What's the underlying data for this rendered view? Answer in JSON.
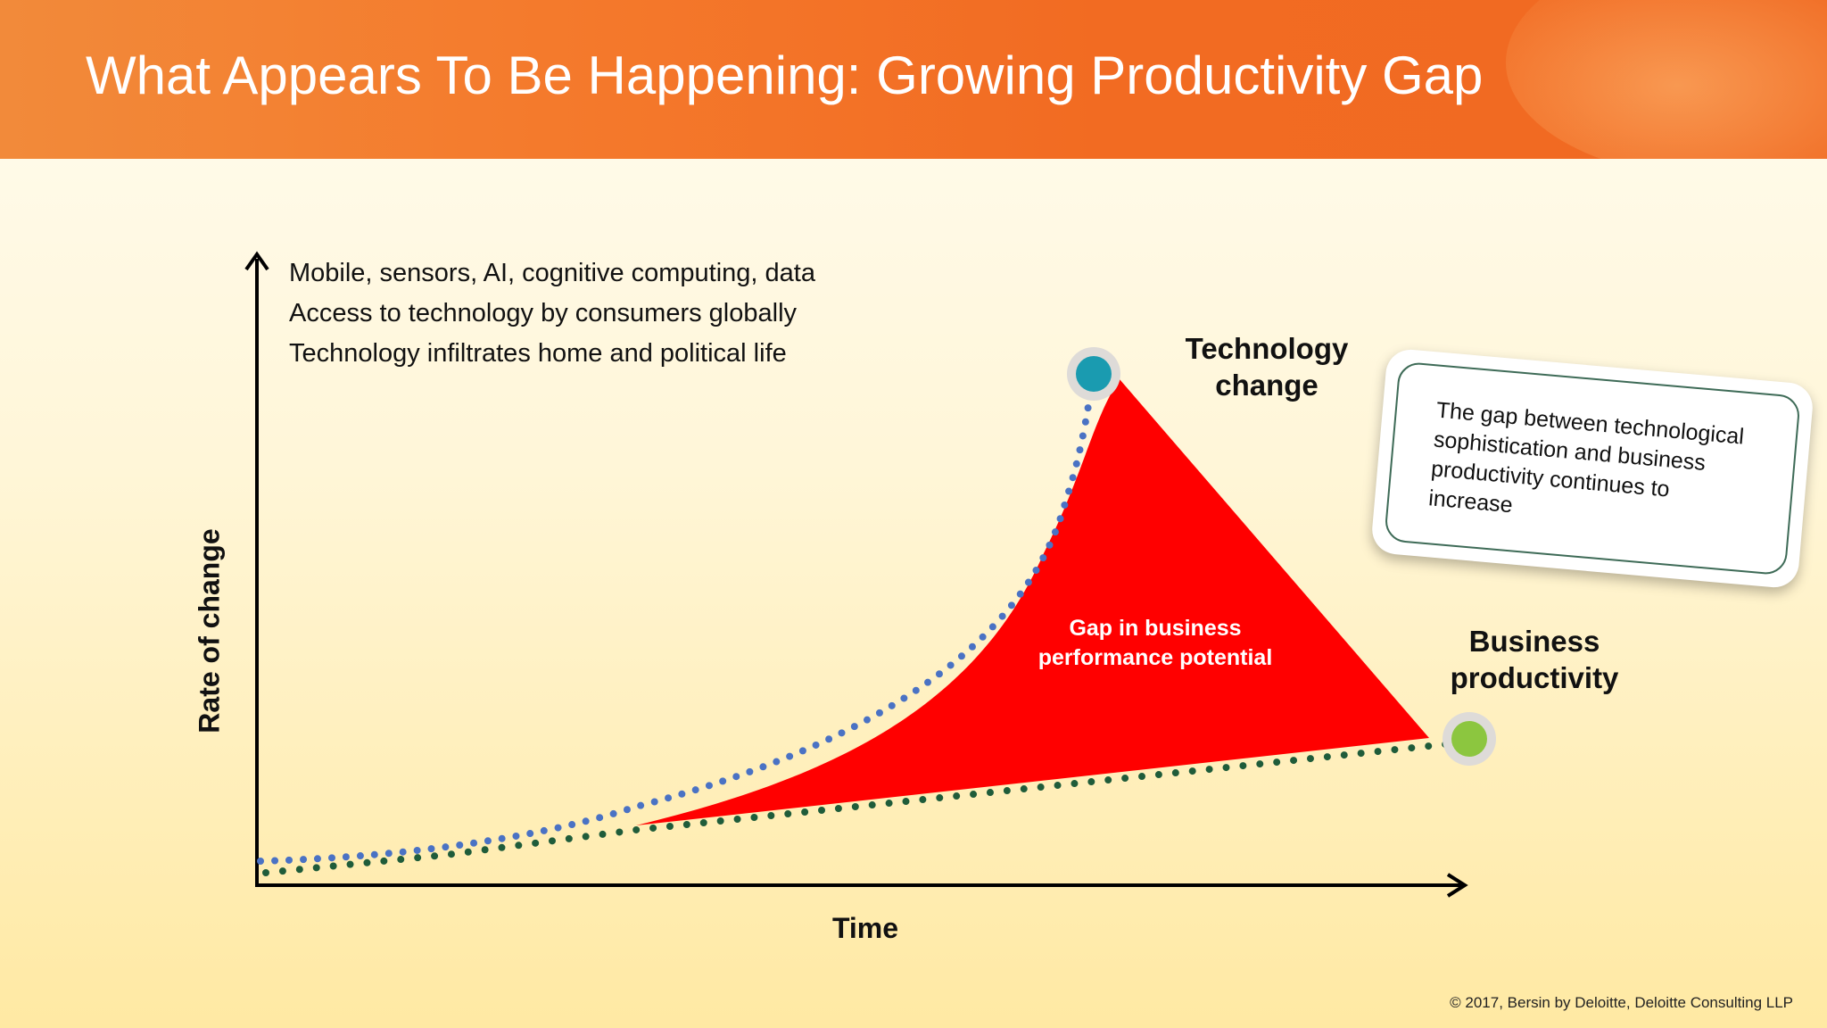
{
  "slide": {
    "title": "What Appears To Be Happening: Growing Productivity Gap",
    "copyright": "© 2017, Bersin by Deloitte, Deloitte Consulting LLP"
  },
  "diagram": {
    "bullets": [
      "Mobile, sensors, AI, cognitive computing, data",
      "Access to technology by consumers globally",
      "Technology infiltrates home and political life"
    ],
    "xlabel": "Time",
    "ylabel": "Rate of change",
    "tech_label": [
      "Technology",
      "change"
    ],
    "biz_label": [
      "Business",
      "productivity"
    ],
    "gap_label": [
      "Gap in business",
      "performance potential"
    ],
    "callout": "The gap between technological sophistication and business productivity continues to increase",
    "colors": {
      "header": "#f26b22",
      "gap_fill": "#ff0000",
      "tech_line": "#4a72c4",
      "biz_line": "#1f5c3a",
      "tech_dot": "#1a9bb0",
      "biz_dot": "#8cc63f"
    }
  }
}
